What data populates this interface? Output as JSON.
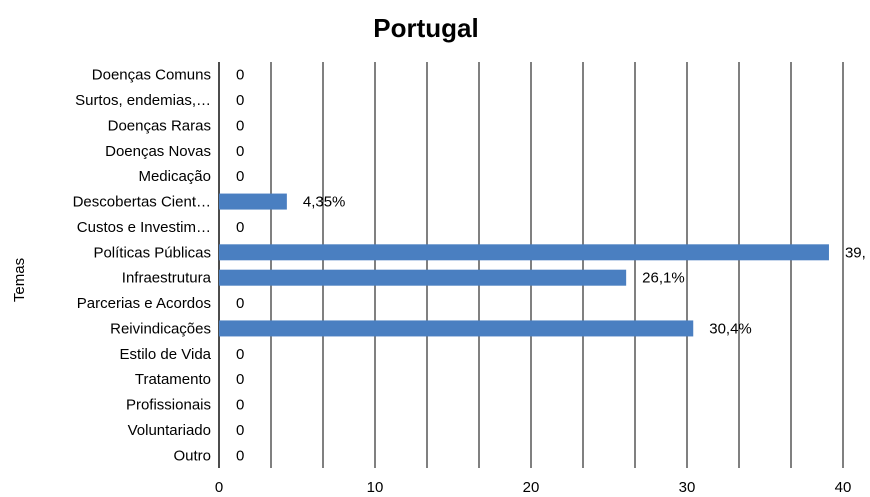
{
  "chart_data": {
    "type": "bar",
    "orientation": "horizontal",
    "title": "Portugal",
    "ylabel": "Temas",
    "xlabel": "",
    "xlim": [
      0,
      40
    ],
    "x_ticks": [
      "0",
      "10",
      "20",
      "30",
      "40"
    ],
    "grid": true,
    "legend": "none",
    "bar_color": "#4a7fc1",
    "categories": [
      "Doenças Comuns",
      "Surtos, endemias,…",
      "Doenças Raras",
      "Doenças Novas",
      "Medicação",
      "Descobertas Cient…",
      "Custos e Investim…",
      "Políticas Públicas",
      "Infraestrutura",
      "Parcerias e Acordos",
      "Reivindicações",
      "Estilo de Vida",
      "Tratamento",
      "Profissionais",
      "Voluntariado",
      "Outro"
    ],
    "values": [
      0,
      0,
      0,
      0,
      0,
      4.35,
      0,
      39.1,
      26.1,
      0,
      30.4,
      0,
      0,
      0,
      0,
      0
    ],
    "data_labels": [
      "0",
      "0",
      "0",
      "0",
      "0",
      "4,35%",
      "0",
      "39,",
      "26,1%",
      "0",
      "30,4%",
      "0",
      "0",
      "0",
      "0",
      "0"
    ]
  }
}
